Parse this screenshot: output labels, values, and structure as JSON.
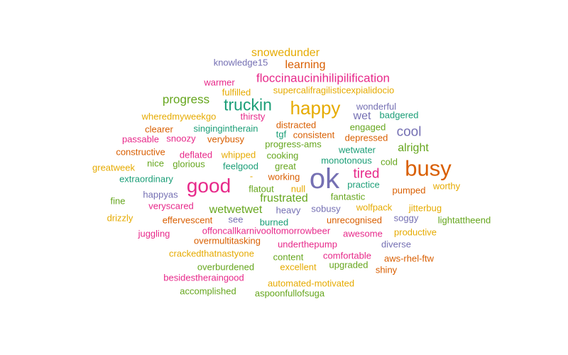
{
  "palette": {
    "teal": "#1b9e77",
    "orange": "#d95f02",
    "purple": "#7570b3",
    "pink": "#e7298a",
    "green": "#66a61e",
    "yellow": "#e6ab02"
  },
  "words": [
    {
      "text": "snowedunder",
      "color": "yellow"
    },
    {
      "text": "knowledge15",
      "color": "purple"
    },
    {
      "text": "learning",
      "color": "orange"
    },
    {
      "text": "floccinaucinihilipilification",
      "color": "pink"
    },
    {
      "text": "warmer",
      "color": "pink"
    },
    {
      "text": "fulfilled",
      "color": "yellow"
    },
    {
      "text": "supercalifragilisticexpialidocio",
      "color": "yellow"
    },
    {
      "text": "progress",
      "color": "green"
    },
    {
      "text": "truckin",
      "color": "teal"
    },
    {
      "text": "happy",
      "color": "yellow"
    },
    {
      "text": "wonderful",
      "color": "purple"
    },
    {
      "text": "wheredmyweekgo",
      "color": "yellow"
    },
    {
      "text": "thirsty",
      "color": "pink"
    },
    {
      "text": "wet",
      "color": "purple"
    },
    {
      "text": "badgered",
      "color": "teal"
    },
    {
      "text": "clearer",
      "color": "orange"
    },
    {
      "text": "singingintherain",
      "color": "teal"
    },
    {
      "text": "distracted",
      "color": "orange"
    },
    {
      "text": "engaged",
      "color": "green"
    },
    {
      "text": "cool",
      "color": "purple"
    },
    {
      "text": "passable",
      "color": "pink"
    },
    {
      "text": "snoozy",
      "color": "pink"
    },
    {
      "text": "verybusy",
      "color": "orange"
    },
    {
      "text": "tgf",
      "color": "teal"
    },
    {
      "text": "consistent",
      "color": "orange"
    },
    {
      "text": "depressed",
      "color": "orange"
    },
    {
      "text": "progress-ams",
      "color": "green"
    },
    {
      "text": "alright",
      "color": "green"
    },
    {
      "text": "constructive",
      "color": "orange"
    },
    {
      "text": "deflated",
      "color": "pink"
    },
    {
      "text": "whipped",
      "color": "yellow"
    },
    {
      "text": "cooking",
      "color": "green"
    },
    {
      "text": "wetwater",
      "color": "teal"
    },
    {
      "text": "busy",
      "color": "orange"
    },
    {
      "text": "nice",
      "color": "green"
    },
    {
      "text": "glorious",
      "color": "green"
    },
    {
      "text": "monotonous",
      "color": "teal"
    },
    {
      "text": "cold",
      "color": "green"
    },
    {
      "text": "greatweek",
      "color": "yellow"
    },
    {
      "text": "feelgood",
      "color": "teal"
    },
    {
      "text": "great",
      "color": "green"
    },
    {
      "text": "tired",
      "color": "pink"
    },
    {
      "text": "extraordinary",
      "color": "teal"
    },
    {
      "text": "good",
      "color": "pink"
    },
    {
      "text": "-",
      "color": "yellow"
    },
    {
      "text": "working",
      "color": "orange"
    },
    {
      "text": "ok",
      "color": "purple"
    },
    {
      "text": "practice",
      "color": "teal"
    },
    {
      "text": "worthy",
      "color": "yellow"
    },
    {
      "text": "flatout",
      "color": "green"
    },
    {
      "text": "null",
      "color": "yellow"
    },
    {
      "text": "pumped",
      "color": "orange"
    },
    {
      "text": "happyas",
      "color": "purple"
    },
    {
      "text": "frustrated",
      "color": "green"
    },
    {
      "text": "fantastic",
      "color": "green"
    },
    {
      "text": "fine",
      "color": "green"
    },
    {
      "text": "veryscared",
      "color": "pink"
    },
    {
      "text": "wetwetwet",
      "color": "green"
    },
    {
      "text": "heavy",
      "color": "purple"
    },
    {
      "text": "sobusy",
      "color": "purple"
    },
    {
      "text": "wolfpack",
      "color": "yellow"
    },
    {
      "text": "jitterbug",
      "color": "yellow"
    },
    {
      "text": "drizzly",
      "color": "yellow"
    },
    {
      "text": "effervescent",
      "color": "orange"
    },
    {
      "text": "see",
      "color": "purple"
    },
    {
      "text": "burned",
      "color": "teal"
    },
    {
      "text": "unrecognised",
      "color": "orange"
    },
    {
      "text": "soggy",
      "color": "purple"
    },
    {
      "text": "lightattheend",
      "color": "green"
    },
    {
      "text": "juggling",
      "color": "pink"
    },
    {
      "text": "offoncallkarnivooltomorrowbeer",
      "color": "pink"
    },
    {
      "text": "awesome",
      "color": "pink"
    },
    {
      "text": "productive",
      "color": "yellow"
    },
    {
      "text": "overmultitasking",
      "color": "orange"
    },
    {
      "text": "underthepump",
      "color": "pink"
    },
    {
      "text": "diverse",
      "color": "purple"
    },
    {
      "text": "crackedthatnastyone",
      "color": "yellow"
    },
    {
      "text": "content",
      "color": "green"
    },
    {
      "text": "comfortable",
      "color": "pink"
    },
    {
      "text": "aws-rhel-ftw",
      "color": "orange"
    },
    {
      "text": "overburdened",
      "color": "green"
    },
    {
      "text": "excellent",
      "color": "yellow"
    },
    {
      "text": "upgraded",
      "color": "green"
    },
    {
      "text": "shiny",
      "color": "orange"
    },
    {
      "text": "besidestheraingood",
      "color": "pink"
    },
    {
      "text": "automated-motivated",
      "color": "yellow"
    },
    {
      "text": "accomplished",
      "color": "green"
    },
    {
      "text": "aspoonfullofsuga",
      "color": "green"
    }
  ]
}
